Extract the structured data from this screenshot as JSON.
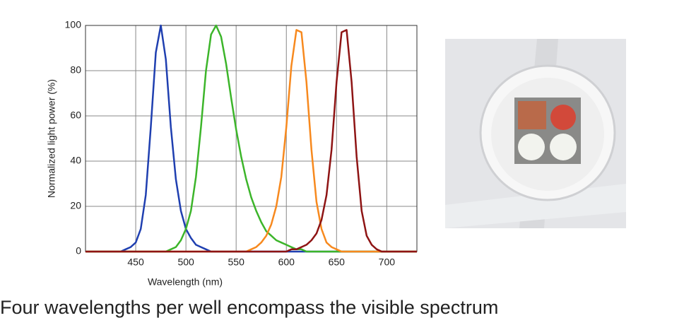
{
  "chart_data": {
    "type": "line",
    "x_label": "Wavelength (nm)",
    "y_label": "Normalized light power (%)",
    "x": [
      400,
      405,
      410,
      415,
      420,
      425,
      430,
      435,
      440,
      445,
      450,
      455,
      460,
      465,
      470,
      475,
      480,
      485,
      490,
      495,
      500,
      505,
      510,
      515,
      520,
      525,
      530,
      535,
      540,
      545,
      550,
      555,
      560,
      565,
      570,
      575,
      580,
      585,
      590,
      595,
      600,
      605,
      610,
      615,
      620,
      625,
      630,
      635,
      640,
      645,
      650,
      655,
      660,
      665,
      670,
      675,
      680,
      685,
      690,
      695,
      700,
      705,
      710,
      715,
      720,
      725,
      730
    ],
    "series": [
      {
        "color": "#1f3fb0",
        "values": [
          0,
          0,
          0,
          0,
          0,
          0,
          0,
          0,
          1,
          2,
          4,
          10,
          25,
          55,
          88,
          100,
          85,
          55,
          32,
          18,
          10,
          6,
          3,
          2,
          1,
          0,
          0,
          0,
          0,
          0,
          0,
          0,
          0,
          0,
          0,
          0,
          0,
          0,
          0,
          0,
          0,
          0,
          0,
          0,
          0,
          0,
          0,
          0,
          0,
          0,
          0,
          0,
          0,
          0,
          0,
          0,
          0,
          0,
          0,
          0,
          0,
          0,
          0,
          0,
          0,
          0,
          0
        ]
      },
      {
        "color": "#3cb52a",
        "values": [
          0,
          0,
          0,
          0,
          0,
          0,
          0,
          0,
          0,
          0,
          0,
          0,
          0,
          0,
          0,
          0,
          0,
          1,
          2,
          5,
          10,
          18,
          33,
          55,
          80,
          96,
          100,
          95,
          83,
          68,
          54,
          42,
          32,
          24,
          18,
          13,
          9,
          7,
          5,
          4,
          3,
          2,
          1,
          1,
          0,
          0,
          0,
          0,
          0,
          0,
          0,
          0,
          0,
          0,
          0,
          0,
          0,
          0,
          0,
          0,
          0,
          0,
          0,
          0,
          0,
          0,
          0
        ]
      },
      {
        "color": "#f7891e",
        "values": [
          0,
          0,
          0,
          0,
          0,
          0,
          0,
          0,
          0,
          0,
          0,
          0,
          0,
          0,
          0,
          0,
          0,
          0,
          0,
          0,
          0,
          0,
          0,
          0,
          0,
          0,
          0,
          0,
          0,
          0,
          0,
          0,
          0,
          1,
          2,
          4,
          7,
          12,
          20,
          33,
          55,
          82,
          98,
          97,
          75,
          45,
          22,
          10,
          4,
          2,
          1,
          0,
          0,
          0,
          0,
          0,
          0,
          0,
          0,
          0,
          0,
          0,
          0,
          0,
          0,
          0,
          0
        ]
      },
      {
        "color": "#8e1414",
        "values": [
          0,
          0,
          0,
          0,
          0,
          0,
          0,
          0,
          0,
          0,
          0,
          0,
          0,
          0,
          0,
          0,
          0,
          0,
          0,
          0,
          0,
          0,
          0,
          0,
          0,
          0,
          0,
          0,
          0,
          0,
          0,
          0,
          0,
          0,
          0,
          0,
          0,
          0,
          0,
          0,
          0,
          1,
          1,
          2,
          3,
          5,
          8,
          14,
          25,
          45,
          75,
          97,
          98,
          75,
          42,
          18,
          7,
          3,
          1,
          0,
          0,
          0,
          0,
          0,
          0,
          0,
          0
        ]
      }
    ],
    "xlim": [
      400,
      730
    ],
    "xticks": [
      450,
      500,
      550,
      600,
      650,
      700
    ],
    "ylim": [
      0,
      100
    ],
    "yticks": [
      0,
      20,
      40,
      60,
      80,
      100
    ],
    "grid": true
  },
  "caption": "Four wavelengths per well encompass the visible spectrum"
}
